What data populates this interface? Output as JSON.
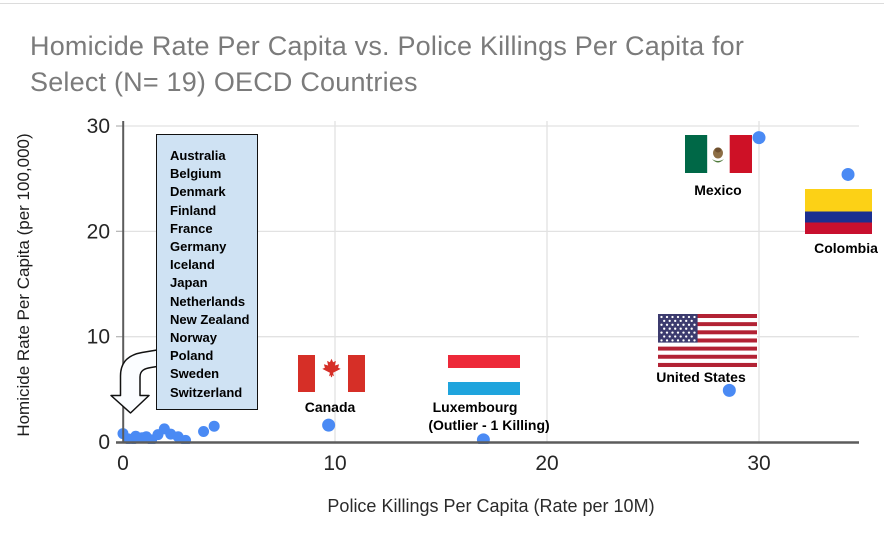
{
  "title": {
    "lines": [
      "Homicide Rate Per Capita vs. Police Killings Per Capita for",
      "Select (N= 19) OECD Countries"
    ],
    "color": "#7b7b7b"
  },
  "chart_data": {
    "type": "scatter",
    "title": "Homicide Rate Per Capita vs. Police Killings Per Capita for Select (N= 19) OECD Countries",
    "xlabel": "Police Killings Per Capita (Rate per 10M)",
    "ylabel": "Homicide Rate Per Capita (per 100,000)",
    "xlim": [
      0,
      34.7
    ],
    "ylim": [
      0,
      30
    ],
    "xticks": [
      0,
      10,
      20,
      30
    ],
    "yticks": [
      0,
      10,
      20,
      30
    ],
    "grid": true,
    "n_countries": 19,
    "style": {
      "point_color": "#4a8af4",
      "gridline_color": "#e2e2e2",
      "axis_color": "#5c5c5c",
      "annotation_box_fill": "#cfe2f3",
      "arrow_fill": "#fbfdff"
    },
    "labeled_points": [
      {
        "label_lines": [
          "Canada"
        ],
        "x": 9.7,
        "y": 1.6,
        "flag": "canada"
      },
      {
        "label_lines": [
          "Luxembourg",
          "(Outlier - 1 Killing)"
        ],
        "x": 17.0,
        "y": 0.2,
        "flag": "luxembourg"
      },
      {
        "label_lines": [
          "United States"
        ],
        "x": 28.6,
        "y": 4.9,
        "flag": "us"
      },
      {
        "label_lines": [
          "Mexico"
        ],
        "x": 30.0,
        "y": 28.9,
        "flag": "mexico"
      },
      {
        "label_lines": [
          "Colombia"
        ],
        "x": 34.2,
        "y": 25.4,
        "flag": "colombia"
      }
    ],
    "cluster_points": [
      [
        0.0,
        0.8
      ],
      [
        0.25,
        0.3
      ],
      [
        0.5,
        0.3
      ],
      [
        0.6,
        0.55
      ],
      [
        0.9,
        0.4
      ],
      [
        1.1,
        0.5
      ],
      [
        1.35,
        0.2
      ],
      [
        1.65,
        0.7
      ],
      [
        1.95,
        1.25
      ],
      [
        2.25,
        0.75
      ],
      [
        2.6,
        0.5
      ],
      [
        2.95,
        0.15
      ],
      [
        3.8,
        1.0
      ],
      [
        4.3,
        1.5
      ]
    ],
    "cluster_label_box": {
      "countries": [
        "Australia",
        "Belgium",
        "Denmark",
        "Finland",
        "France",
        "Germany",
        "Iceland",
        "Japan",
        "Netherlands",
        "New Zealand",
        "Norway",
        "Poland",
        "Sweden",
        "Switzerland"
      ]
    },
    "flag_colors": {
      "canada_red": "#d62f27",
      "lux_red": "#ed2939",
      "lux_blue": "#1fa4dd",
      "us_red": "#b22234",
      "us_blue": "#3c3b6e",
      "mex_green": "#006847",
      "mex_red": "#ce1126",
      "col_yellow": "#fcd116",
      "col_blue": "#1b2f90",
      "col_red": "#c8102e"
    }
  }
}
